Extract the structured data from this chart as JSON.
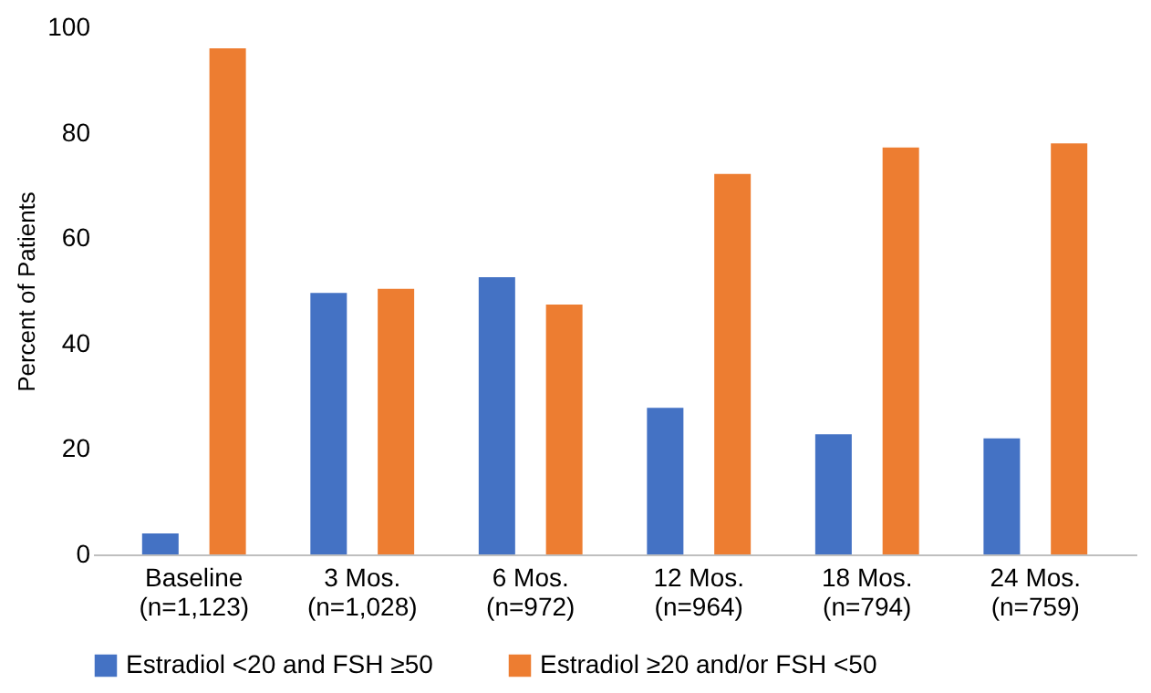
{
  "chart_data": {
    "type": "bar",
    "ylabel": "Percent of Patients",
    "categories": [
      "Baseline\n(n=1,123)",
      "3  Mos.\n(n=1,028)",
      "6 Mos.\n(n=972)",
      "12 Mos.\n(n=964)",
      "18 Mos.\n(n=794)",
      "24 Mos.\n(n=759)"
    ],
    "series": [
      {
        "name": "Estradiol <20 and FSH ≥50",
        "color": "#4472c4",
        "values": [
          4,
          49.6,
          52.6,
          27.8,
          22.8,
          22
        ]
      },
      {
        "name": "Estradiol ≥20 and/or FSH <50",
        "color": "#ed7d31",
        "values": [
          96,
          50.4,
          47.4,
          72.2,
          77.2,
          78
        ]
      }
    ],
    "ylim": [
      0,
      100
    ],
    "yticks": [
      0,
      20,
      40,
      60,
      80,
      100
    ],
    "grid": false,
    "legend": "bottom"
  }
}
